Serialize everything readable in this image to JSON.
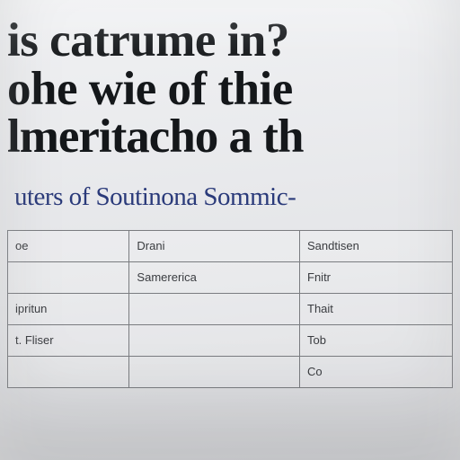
{
  "heading": {
    "line1": "is catrume in?",
    "line2": "ohe wie of thie",
    "line3": "lmeritacho a th"
  },
  "subhead": "uters of Soutinona Sommic-",
  "table": {
    "columns": [
      "oe",
      "Drani",
      "Sandtisen"
    ],
    "rows": [
      [
        "",
        "Samererica",
        "Fnitr"
      ],
      [
        "ipritun",
        "",
        "Thait"
      ],
      [
        "t. Fliser",
        "",
        "Tob"
      ],
      [
        "",
        "",
        "Co"
      ]
    ],
    "border_color": "#7a7c80",
    "font_size": 13,
    "text_color": "#3a3c40"
  },
  "colors": {
    "heading_color": "#14171a",
    "subhead_color": "#2a3a7a",
    "background": "#e8e9ec"
  }
}
